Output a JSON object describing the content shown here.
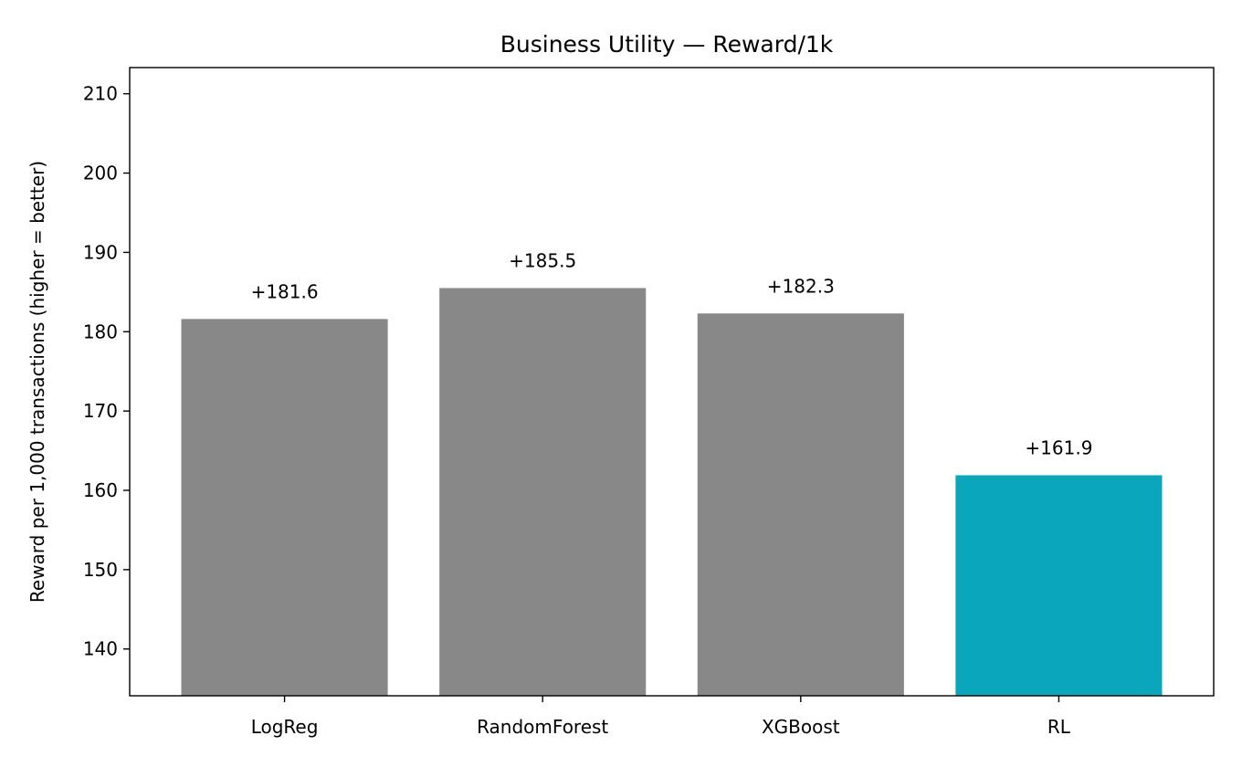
{
  "chart_data": {
    "type": "bar",
    "title": "Business Utility — Reward/1k",
    "xlabel": "",
    "ylabel": "Reward per 1,000 transactions (higher = better)",
    "categories": [
      "LogReg",
      "RandomForest",
      "XGBoost",
      "RL"
    ],
    "values": [
      181.6,
      185.5,
      182.3,
      161.9
    ],
    "data_labels": [
      "+181.6",
      "+185.5",
      "+182.3",
      "+161.9"
    ],
    "bar_colors": [
      "#888888",
      "#888888",
      "#888888",
      "#0aa6bb"
    ],
    "ylim": [
      134.1,
      213.3
    ],
    "yticks": [
      140,
      150,
      160,
      170,
      180,
      190,
      200,
      210
    ],
    "grid": false,
    "legend": "none"
  }
}
